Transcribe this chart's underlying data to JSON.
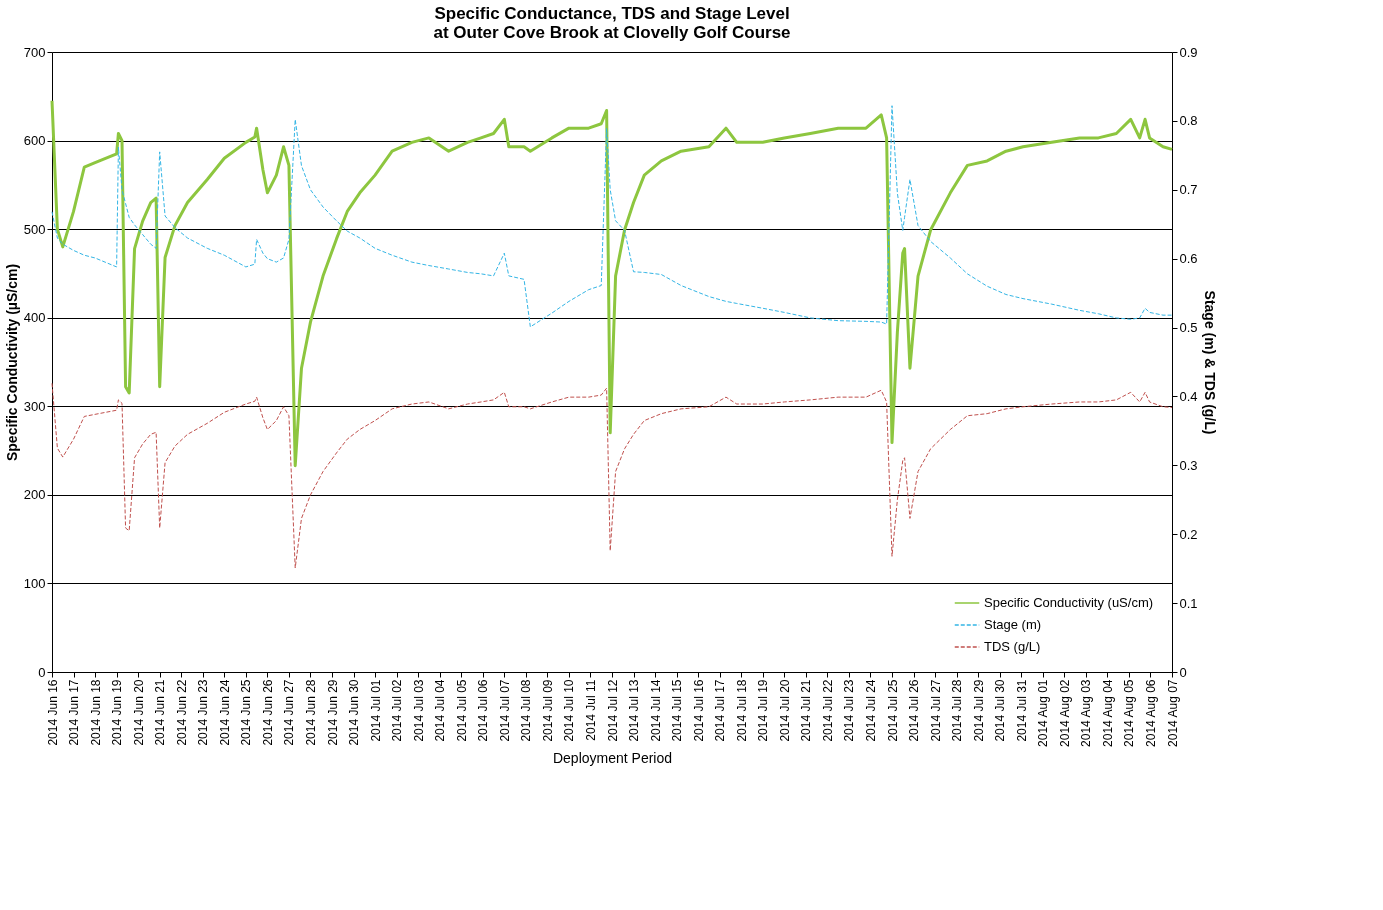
{
  "chart_data": {
    "type": "line",
    "title": "Specific Conductance, TDS and Stage Level\nat Outer Cove Brook at Clovelly Golf Course",
    "xlabel": "Deployment Period",
    "ylabel": "Specific Conductivity (µS/cm)",
    "y2label": "Stage (m) & TDS (g/L)",
    "x": [
      "2014-06-16T00:00",
      "2014-06-16T06:00",
      "2014-06-16T12:00",
      "2014-06-17T00:00",
      "2014-06-17T12:00",
      "2014-06-18T00:00",
      "2014-06-19T00:00",
      "2014-06-19T02:00",
      "2014-06-19T06:00",
      "2014-06-19T10:00",
      "2014-06-19T14:00",
      "2014-06-19T20:00",
      "2014-06-20T05:00",
      "2014-06-20T14:00",
      "2014-06-20T20:00",
      "2014-06-21T00:00",
      "2014-06-21T06:00",
      "2014-06-21T17:00",
      "2014-06-22T07:00",
      "2014-06-23T05:00",
      "2014-06-24T00:00",
      "2014-06-25T00:00",
      "2014-06-25T10:00",
      "2014-06-25T12:00",
      "2014-06-25T19:00",
      "2014-06-26T00:00",
      "2014-06-26T10:00",
      "2014-06-26T18:00",
      "2014-06-27T00:00",
      "2014-06-27T07:00",
      "2014-06-27T14:00",
      "2014-06-28T00:00",
      "2014-06-28T14:00",
      "2014-06-29T05:00",
      "2014-06-29T17:00",
      "2014-06-30T07:00",
      "2014-07-01T00:00",
      "2014-07-01T19:00",
      "2014-07-02T17:00",
      "2014-07-03T12:00",
      "2014-07-04T10:00",
      "2014-07-05T07:00",
      "2014-07-05T22:00",
      "2014-07-06T12:00",
      "2014-07-07T00:00",
      "2014-07-07T05:00",
      "2014-07-07T22:00",
      "2014-07-08T05:00",
      "2014-07-09T05:00",
      "2014-07-10T00:00",
      "2014-07-10T22:00",
      "2014-07-11T12:00",
      "2014-07-11T18:00",
      "2014-07-11T22:00",
      "2014-07-12T04:00",
      "2014-07-12T14:00",
      "2014-07-13T00:00",
      "2014-07-13T12:00",
      "2014-07-14T07:00",
      "2014-07-15T05:00",
      "2014-07-16T12:00",
      "2014-07-17T07:00",
      "2014-07-17T19:00",
      "2014-07-19T00:00",
      "2014-07-20T00:00",
      "2014-07-21T05:00",
      "2014-07-22T12:00",
      "2014-07-23T19:00",
      "2014-07-24T12:00",
      "2014-07-24T18:00",
      "2014-07-25T00:00",
      "2014-07-25T06:00",
      "2014-07-25T12:00",
      "2014-07-25T14:00",
      "2014-07-25T20:00",
      "2014-07-26T05:00",
      "2014-07-26T19:00",
      "2014-07-27T17:00",
      "2014-07-28T12:00",
      "2014-07-29T10:00",
      "2014-07-30T07:00",
      "2014-07-31T02:00",
      "2014-08-01T10:00",
      "2014-08-02T17:00",
      "2014-08-03T14:00",
      "2014-08-04T10:00",
      "2014-08-05T02:00",
      "2014-08-05T12:00",
      "2014-08-05T18:00",
      "2014-08-05T23:00",
      "2014-08-06T14:00",
      "2014-08-07T00:00"
    ],
    "series": [
      {
        "name": "Specific Conductivity (uS/cm)",
        "color": "#8dc63f",
        "line_style": "solid",
        "values": [
          645,
          500,
          480,
          520,
          570,
          575,
          585,
          608,
          600,
          322,
          315,
          478,
          509,
          530,
          535,
          322,
          468,
          504,
          530,
          556,
          580,
          598,
          604,
          614,
          567,
          541,
          561,
          593,
          572,
          233,
          343,
          395,
          447,
          489,
          520,
          541,
          561,
          588,
          598,
          603,
          588,
          598,
          603,
          608,
          624,
          593,
          593,
          588,
          603,
          614,
          614,
          619,
          634,
          270,
          447,
          499,
          530,
          561,
          577,
          588,
          593,
          614,
          598,
          598,
          603,
          608,
          614,
          614,
          629,
          603,
          259,
          384,
          473,
          478,
          343,
          447,
          499,
          541,
          572,
          577,
          588,
          593,
          598,
          603,
          603,
          608,
          624,
          603,
          624,
          603,
          593,
          590
        ]
      },
      {
        "name": "Stage (m)",
        "color": "#33b5e5",
        "line_style": "dashed",
        "axis": "y2",
        "values": [
          0.668,
          0.63,
          0.621,
          0.612,
          0.605,
          0.601,
          0.588,
          0.762,
          0.7,
          0.68,
          0.66,
          0.649,
          0.635,
          0.621,
          0.615,
          0.755,
          0.662,
          0.645,
          0.63,
          0.615,
          0.605,
          0.588,
          0.592,
          0.628,
          0.608,
          0.6,
          0.595,
          0.601,
          0.628,
          0.802,
          0.735,
          0.7,
          0.675,
          0.655,
          0.64,
          0.63,
          0.615,
          0.605,
          0.595,
          0.59,
          0.585,
          0.58,
          0.578,
          0.575,
          0.608,
          0.575,
          0.57,
          0.501,
          0.521,
          0.538,
          0.555,
          0.561,
          0.789,
          0.7,
          0.655,
          0.641,
          0.581,
          0.58,
          0.577,
          0.561,
          0.545,
          0.538,
          0.535,
          0.528,
          0.522,
          0.514,
          0.51,
          0.509,
          0.508,
          0.505,
          0.822,
          0.695,
          0.641,
          0.66,
          0.715,
          0.648,
          0.625,
          0.601,
          0.578,
          0.56,
          0.548,
          0.542,
          0.534,
          0.525,
          0.52,
          0.514,
          0.512,
          0.514,
          0.528,
          0.522,
          0.518,
          0.518
        ]
      },
      {
        "name": "TDS (g/L)",
        "color": "#c0504d",
        "line_style": "dashed",
        "axis": "y2",
        "values": [
          0.419,
          0.325,
          0.312,
          0.338,
          0.371,
          0.374,
          0.38,
          0.395,
          0.39,
          0.209,
          0.205,
          0.311,
          0.331,
          0.345,
          0.348,
          0.209,
          0.304,
          0.328,
          0.345,
          0.361,
          0.377,
          0.389,
          0.393,
          0.399,
          0.369,
          0.352,
          0.365,
          0.385,
          0.372,
          0.151,
          0.223,
          0.257,
          0.291,
          0.318,
          0.338,
          0.352,
          0.365,
          0.382,
          0.389,
          0.392,
          0.382,
          0.389,
          0.392,
          0.395,
          0.406,
          0.385,
          0.385,
          0.382,
          0.392,
          0.399,
          0.399,
          0.402,
          0.412,
          0.176,
          0.291,
          0.324,
          0.345,
          0.365,
          0.375,
          0.382,
          0.385,
          0.399,
          0.389,
          0.389,
          0.392,
          0.395,
          0.399,
          0.399,
          0.409,
          0.392,
          0.168,
          0.25,
          0.307,
          0.311,
          0.223,
          0.291,
          0.324,
          0.352,
          0.372,
          0.375,
          0.382,
          0.385,
          0.389,
          0.392,
          0.392,
          0.395,
          0.406,
          0.392,
          0.406,
          0.392,
          0.385,
          0.384
        ]
      }
    ],
    "xlim": [
      "2014-06-16",
      "2014-08-07"
    ],
    "xticks": [
      {
        "value": "2014-06-16",
        "label": "2014 Jun 16"
      },
      {
        "value": "2014-06-17",
        "label": "2014 Jun 17"
      },
      {
        "value": "2014-06-18",
        "label": "2014 Jun 18"
      },
      {
        "value": "2014-06-19",
        "label": "2014 Jun 19"
      },
      {
        "value": "2014-06-20",
        "label": "2014 Jun 20"
      },
      {
        "value": "2014-06-21",
        "label": "2014 Jun 21"
      },
      {
        "value": "2014-06-22",
        "label": "2014 Jun 22"
      },
      {
        "value": "2014-06-23",
        "label": "2014 Jun 23"
      },
      {
        "value": "2014-06-24",
        "label": "2014 Jun 24"
      },
      {
        "value": "2014-06-25",
        "label": "2014 Jun 25"
      },
      {
        "value": "2014-06-26",
        "label": "2014 Jun 26"
      },
      {
        "value": "2014-06-27",
        "label": "2014 Jun 27"
      },
      {
        "value": "2014-06-28",
        "label": "2014 Jun 28"
      },
      {
        "value": "2014-06-29",
        "label": "2014 Jun 29"
      },
      {
        "value": "2014-06-30",
        "label": "2014 Jun 30"
      },
      {
        "value": "2014-07-01",
        "label": "2014 Jul 01"
      },
      {
        "value": "2014-07-02",
        "label": "2014 Jul 02"
      },
      {
        "value": "2014-07-03",
        "label": "2014 Jul 03"
      },
      {
        "value": "2014-07-04",
        "label": "2014 Jul 04"
      },
      {
        "value": "2014-07-05",
        "label": "2014 Jul 05"
      },
      {
        "value": "2014-07-06",
        "label": "2014 Jul 06"
      },
      {
        "value": "2014-07-07",
        "label": "2014 Jul 07"
      },
      {
        "value": "2014-07-08",
        "label": "2014 Jul 08"
      },
      {
        "value": "2014-07-09",
        "label": "2014 Jul 09"
      },
      {
        "value": "2014-07-10",
        "label": "2014 Jul 10"
      },
      {
        "value": "2014-07-11",
        "label": "2014 Jul 11"
      },
      {
        "value": "2014-07-12",
        "label": "2014 Jul 12"
      },
      {
        "value": "2014-07-13",
        "label": "2014 Jul 13"
      },
      {
        "value": "2014-07-14",
        "label": "2014 Jul 14"
      },
      {
        "value": "2014-07-15",
        "label": "2014 Jul 15"
      },
      {
        "value": "2014-07-16",
        "label": "2014 Jul 16"
      },
      {
        "value": "2014-07-17",
        "label": "2014 Jul 17"
      },
      {
        "value": "2014-07-18",
        "label": "2014 Jul 18"
      },
      {
        "value": "2014-07-19",
        "label": "2014 Jul 19"
      },
      {
        "value": "2014-07-20",
        "label": "2014 Jul 20"
      },
      {
        "value": "2014-07-21",
        "label": "2014 Jul 21"
      },
      {
        "value": "2014-07-22",
        "label": "2014 Jul 22"
      },
      {
        "value": "2014-07-23",
        "label": "2014 Jul 23"
      },
      {
        "value": "2014-07-24",
        "label": "2014 Jul 24"
      },
      {
        "value": "2014-07-25",
        "label": "2014 Jul 25"
      },
      {
        "value": "2014-07-26",
        "label": "2014 Jul 26"
      },
      {
        "value": "2014-07-27",
        "label": "2014 Jul 27"
      },
      {
        "value": "2014-07-28",
        "label": "2014 Jul 28"
      },
      {
        "value": "2014-07-29",
        "label": "2014 Jul 29"
      },
      {
        "value": "2014-07-30",
        "label": "2014 Jul 30"
      },
      {
        "value": "2014-07-31",
        "label": "2014 Jul 31"
      },
      {
        "value": "2014-08-01",
        "label": "2014 Aug 01"
      },
      {
        "value": "2014-08-02",
        "label": "2014 Aug 02"
      },
      {
        "value": "2014-08-03",
        "label": "2014 Aug 03"
      },
      {
        "value": "2014-08-04",
        "label": "2014 Aug 04"
      },
      {
        "value": "2014-08-05",
        "label": "2014 Aug 05"
      },
      {
        "value": "2014-08-06",
        "label": "2014 Aug 06"
      },
      {
        "value": "2014-08-07",
        "label": "2014 Aug 07"
      }
    ],
    "ylim": [
      0,
      700
    ],
    "yticks": [
      0,
      100,
      200,
      300,
      400,
      500,
      600,
      700
    ],
    "y2lim": [
      0,
      0.9
    ],
    "y2ticks": [
      0,
      0.1,
      0.2,
      0.3,
      0.4,
      0.5,
      0.6,
      0.7,
      0.8,
      0.9
    ],
    "grid": "y",
    "legend": "bottom right"
  }
}
